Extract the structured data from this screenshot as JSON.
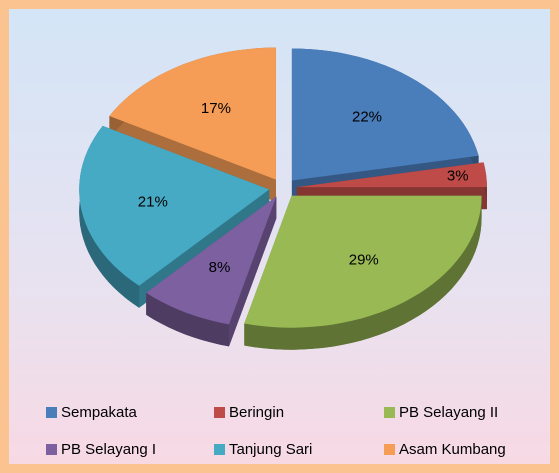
{
  "chart_data": {
    "type": "pie",
    "categories": [
      "Sempakata",
      "Beringin",
      "PB Selayang II",
      "PB Selayang I",
      "Tanjung Sari",
      "Asam Kumbang"
    ],
    "values": [
      22,
      3,
      29,
      8,
      21,
      17
    ],
    "value_labels": [
      "22%",
      "3%",
      "29%",
      "8%",
      "21%",
      "17%"
    ],
    "colors": [
      "#4a7ebb",
      "#be4b48",
      "#98b954",
      "#7d60a0",
      "#46aac5",
      "#f59d56"
    ],
    "legend": "bottom"
  }
}
